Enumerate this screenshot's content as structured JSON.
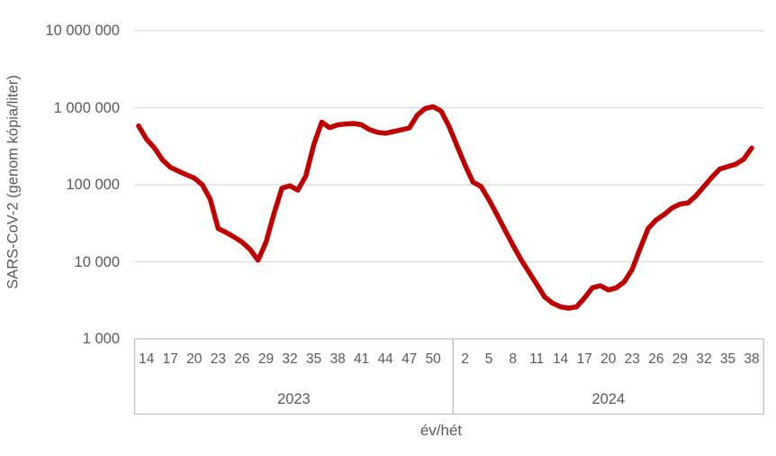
{
  "chart_data": {
    "type": "line",
    "title": "",
    "ylabel": "SARS-CoV-2 (genom kópia/liter)",
    "xlabel": "év/hét",
    "legend": "none",
    "grid": "horizontal",
    "y_axis": {
      "scale": "log",
      "range": [
        1000,
        10000000
      ],
      "ticks": [
        {
          "label": "10 000 000",
          "value": 10000000
        },
        {
          "label": "1 000 000",
          "value": 1000000
        },
        {
          "label": "100 000",
          "value": 100000
        },
        {
          "label": "10 000",
          "value": 10000
        },
        {
          "label": "1 000",
          "value": 1000
        }
      ]
    },
    "series": [
      {
        "groups": [
          {
            "year": "2023",
            "first_week": 13,
            "tick_weeks": [
              14,
              17,
              20,
              23,
              26,
              29,
              32,
              35,
              38,
              41,
              44,
              47,
              50
            ],
            "weekly_values": [
              580000,
              390000,
              300000,
              210000,
              168000,
              150000,
              135000,
              122000,
              100000,
              65000,
              27000,
              24000,
              21000,
              18000,
              14500,
              10500,
              18000,
              42000,
              90000,
              97000,
              85000,
              130000,
              330000,
              650000,
              550000,
              600000,
              615000,
              625000,
              600000,
              520000,
              480000,
              465000,
              490000,
              515000,
              545000,
              800000,
              980000,
              1030000,
              900000,
              570000
            ]
          },
          {
            "year": "2024",
            "first_week": 1,
            "tick_weeks": [
              2,
              5,
              8,
              11,
              14,
              17,
              20,
              23,
              26,
              29,
              32,
              35,
              38
            ],
            "weekly_values": [
              320000,
              180000,
              108000,
              95000,
              64000,
              41000,
              26000,
              16500,
              10800,
              7400,
              5100,
              3500,
              2900,
              2600,
              2500,
              2600,
              3400,
              4600,
              4900,
              4300,
              4600,
              5500,
              8000,
              15000,
              27000,
              35000,
              41000,
              50000,
              56000,
              58000,
              72000,
              95000,
              125000,
              160000,
              172000,
              185000,
              215000,
              300000
            ]
          }
        ]
      }
    ],
    "colors": {
      "series": "#c00000",
      "grid": "#d9d9d9",
      "axis": "#bfbfbf",
      "text": "#595959"
    }
  }
}
